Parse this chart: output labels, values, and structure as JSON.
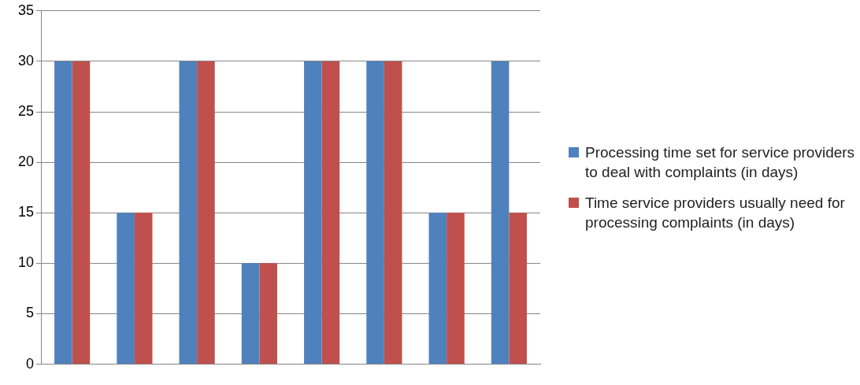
{
  "chart_data": {
    "type": "bar",
    "categories": [
      null,
      null,
      null,
      null,
      null,
      null,
      null,
      null
    ],
    "series": [
      {
        "name": "Processing time set for service providers to deal with complaints (in days)",
        "color": "#4f81bd",
        "values": [
          30,
          15,
          30,
          10,
          30,
          30,
          15,
          30
        ]
      },
      {
        "name": "Time service providers usually need for processing complaints (in days)",
        "color": "#c0504d",
        "values": [
          30,
          15,
          30,
          10,
          30,
          30,
          15,
          15
        ]
      }
    ],
    "ylim": [
      0,
      35
    ],
    "yticks": [
      0,
      5,
      10,
      15,
      20,
      25,
      30,
      35
    ],
    "grid": "y",
    "legend": "right"
  }
}
